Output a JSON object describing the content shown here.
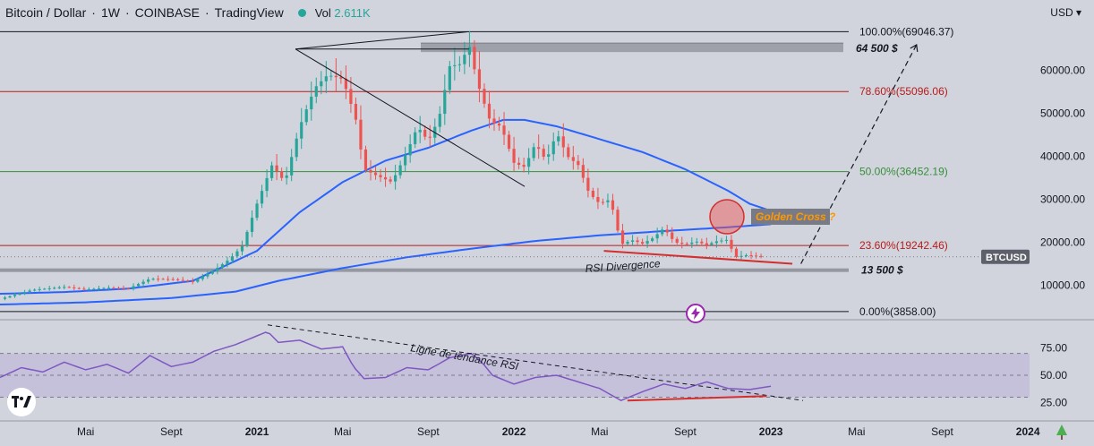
{
  "header": {
    "symbol": "Bitcoin / Dollar",
    "interval": "1W",
    "exchange": "COINBASE",
    "platform": "TradingView",
    "volume_label": "Vol",
    "volume_value": "2.611K",
    "currency": "USD"
  },
  "colors": {
    "background": "#d1d4dc",
    "up": "#26a69a",
    "down": "#ef5350",
    "ma_short": "#2962ff",
    "ma_long": "#2962ff",
    "rsi": "#7e57c2",
    "fib_red": "#b71c1c",
    "fib_green": "#388e3c",
    "annotation_orange": "#ff9800"
  },
  "chart_data": {
    "type": "candlestick",
    "instrument": "BTCUSD",
    "y_axis": {
      "min": 3000,
      "max": 71000,
      "ticks": [
        10000,
        20000,
        30000,
        40000,
        50000,
        60000
      ],
      "tick_labels": [
        "10000.00",
        "20000.00",
        "30000.00",
        "40000.00",
        "50000.00",
        "60000.00"
      ]
    },
    "x_axis": {
      "tick_labels": [
        "Mai",
        "Sept",
        "2021",
        "Mai",
        "Sept",
        "2022",
        "Mai",
        "Sept",
        "2023",
        "Mai",
        "Sept",
        "2024"
      ],
      "tick_months": [
        4,
        8,
        12,
        16,
        20,
        24,
        28,
        32,
        36,
        40,
        44,
        48
      ],
      "start_month": 0,
      "end_month": 51
    },
    "price_anchors": [
      [
        0.0,
        6800
      ],
      [
        1.5,
        8900
      ],
      [
        3.0,
        9600
      ],
      [
        4.0,
        9000
      ],
      [
        5.0,
        9400
      ],
      [
        6.0,
        9250
      ],
      [
        7.0,
        11500
      ],
      [
        8.0,
        11400
      ],
      [
        9.0,
        10800
      ],
      [
        10.0,
        13500
      ],
      [
        10.7,
        16000
      ],
      [
        11.3,
        19000
      ],
      [
        12.0,
        29000
      ],
      [
        12.7,
        38000
      ],
      [
        13.3,
        34000
      ],
      [
        14.0,
        47000
      ],
      [
        14.7,
        56000
      ],
      [
        15.3,
        59000
      ],
      [
        16.0,
        58000
      ],
      [
        16.6,
        49000
      ],
      [
        17.0,
        37000
      ],
      [
        17.6,
        35500
      ],
      [
        18.3,
        34000
      ],
      [
        19.0,
        41000
      ],
      [
        19.5,
        47000
      ],
      [
        20.0,
        43500
      ],
      [
        20.5,
        49000
      ],
      [
        21.0,
        61000
      ],
      [
        21.5,
        61500
      ],
      [
        21.9,
        66000
      ],
      [
        22.3,
        57000
      ],
      [
        22.9,
        48000
      ],
      [
        23.4,
        47000
      ],
      [
        24.0,
        38500
      ],
      [
        24.5,
        37500
      ],
      [
        25.0,
        43000
      ],
      [
        25.5,
        39000
      ],
      [
        26.0,
        45500
      ],
      [
        26.5,
        40000
      ],
      [
        27.0,
        38000
      ],
      [
        27.5,
        31500
      ],
      [
        28.0,
        29000
      ],
      [
        28.5,
        30000
      ],
      [
        29.0,
        19500
      ],
      [
        29.5,
        20500
      ],
      [
        30.0,
        19700
      ],
      [
        30.5,
        21000
      ],
      [
        31.0,
        23300
      ],
      [
        31.5,
        20000
      ],
      [
        32.0,
        19500
      ],
      [
        32.5,
        20200
      ],
      [
        33.0,
        19400
      ],
      [
        33.5,
        20300
      ],
      [
        34.0,
        20600
      ],
      [
        34.3,
        16500
      ],
      [
        34.8,
        17000
      ],
      [
        35.3,
        16800
      ],
      [
        35.7,
        16600
      ]
    ],
    "ma_short": [
      [
        0.0,
        8000
      ],
      [
        3.0,
        8400
      ],
      [
        6.0,
        9200
      ],
      [
        9.0,
        11000
      ],
      [
        12.0,
        18000
      ],
      [
        14.0,
        27000
      ],
      [
        16.0,
        34000
      ],
      [
        18.0,
        39000
      ],
      [
        20.0,
        42000
      ],
      [
        22.0,
        46000
      ],
      [
        23.5,
        48500
      ],
      [
        24.5,
        48500
      ],
      [
        26.0,
        47000
      ],
      [
        28.0,
        44000
      ],
      [
        30.0,
        41000
      ],
      [
        32.0,
        37000
      ],
      [
        34.0,
        32000
      ],
      [
        35.0,
        29000
      ],
      [
        36.0,
        27300
      ]
    ],
    "ma_long": [
      [
        0.0,
        5500
      ],
      [
        4.0,
        6000
      ],
      [
        8.0,
        7000
      ],
      [
        11.0,
        8500
      ],
      [
        13.0,
        11000
      ],
      [
        16.0,
        14000
      ],
      [
        19.0,
        16500
      ],
      [
        22.0,
        18500
      ],
      [
        25.0,
        20300
      ],
      [
        28.0,
        21600
      ],
      [
        31.0,
        22600
      ],
      [
        34.0,
        23500
      ],
      [
        36.0,
        24200
      ]
    ],
    "levels": [
      {
        "name": "fib-100",
        "value": 69046.37,
        "label": "100.00%(69046.37)",
        "color": "#131722"
      },
      {
        "name": "fib-786",
        "value": 55096.06,
        "label": "78.60%(55096.06)",
        "color": "#b71c1c"
      },
      {
        "name": "fib-50",
        "value": 36452.19,
        "label": "50.00%(36452.19)",
        "color": "#388e3c"
      },
      {
        "name": "fib-236",
        "value": 19242.46,
        "label": "23.60%(19242.46)",
        "color": "#b71c1c"
      },
      {
        "name": "fib-0",
        "value": 3858.0,
        "label": "0.00%(3858.00)",
        "color": "#131722"
      }
    ],
    "zones": [
      {
        "name": "resistance-zone",
        "label": "64 500 $",
        "value": 64500
      },
      {
        "name": "support-zone",
        "label": "13 500 $",
        "value": 13500
      }
    ],
    "annotations": {
      "golden_cross": "Golden Cross ?",
      "rsi_divergence": "RSI Divergence",
      "rsi_trendline": "Ligne de tendance RSI",
      "price_tag": "BTCUSD"
    },
    "rsi": {
      "y_ticks": [
        25,
        50,
        75
      ],
      "tick_labels": [
        "25.00",
        "50.00",
        "75.00"
      ],
      "upper_band": 70,
      "lower_band": 30,
      "anchors": [
        [
          0.0,
          48
        ],
        [
          1.0,
          57
        ],
        [
          2.0,
          53
        ],
        [
          3.0,
          62
        ],
        [
          4.0,
          55
        ],
        [
          5.0,
          60
        ],
        [
          6.0,
          52
        ],
        [
          7.0,
          68
        ],
        [
          8.0,
          58
        ],
        [
          9.0,
          62
        ],
        [
          10.0,
          72
        ],
        [
          11.0,
          78
        ],
        [
          12.0,
          86
        ],
        [
          12.5,
          90
        ],
        [
          13.0,
          80
        ],
        [
          14.0,
          82
        ],
        [
          15.0,
          74
        ],
        [
          16.0,
          76
        ],
        [
          16.5,
          58
        ],
        [
          17.0,
          47
        ],
        [
          18.0,
          48
        ],
        [
          19.0,
          57
        ],
        [
          20.0,
          55
        ],
        [
          21.0,
          66
        ],
        [
          22.0,
          70
        ],
        [
          22.5,
          62
        ],
        [
          23.0,
          50
        ],
        [
          24.0,
          42
        ],
        [
          25.0,
          48
        ],
        [
          26.0,
          50
        ],
        [
          27.0,
          44
        ],
        [
          28.0,
          38
        ],
        [
          29.0,
          27
        ],
        [
          30.0,
          35
        ],
        [
          31.0,
          42
        ],
        [
          32.0,
          38
        ],
        [
          33.0,
          44
        ],
        [
          34.0,
          38
        ],
        [
          35.0,
          37
        ],
        [
          36.0,
          40
        ]
      ]
    }
  }
}
